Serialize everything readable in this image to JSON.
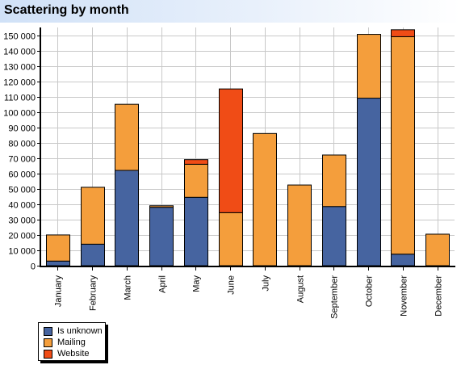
{
  "title": "Scattering by month",
  "chart_data": {
    "type": "bar",
    "stacked": true,
    "categories": [
      "January",
      "February",
      "March",
      "April",
      "May",
      "June",
      "July",
      "August",
      "September",
      "October",
      "November",
      "December"
    ],
    "series": [
      {
        "name": "Is unknown",
        "color": "#4664a0",
        "values": [
          3000,
          14000,
          62000,
          38000,
          44500,
          0,
          0,
          0,
          38500,
          109000,
          7500,
          0
        ]
      },
      {
        "name": "Mailing",
        "color": "#f49e3c",
        "values": [
          17000,
          37000,
          43000,
          1000,
          21500,
          34500,
          86000,
          52500,
          33500,
          41500,
          141500,
          20500
        ]
      },
      {
        "name": "Website",
        "color": "#f04c16",
        "values": [
          0,
          0,
          0,
          0,
          3000,
          80500,
          0,
          0,
          0,
          0,
          4500,
          0
        ]
      }
    ],
    "ylim": [
      0,
      155000
    ],
    "yticks": [
      0,
      10000,
      20000,
      30000,
      40000,
      50000,
      60000,
      70000,
      80000,
      90000,
      100000,
      110000,
      120000,
      130000,
      140000,
      150000
    ],
    "ytick_labels": [
      "0",
      "10 000",
      "20 000",
      "30 000",
      "40 000",
      "50 000",
      "60 000",
      "70 000",
      "80 000",
      "90 000",
      "100 000",
      "110 000",
      "120 000",
      "130 000",
      "140 000",
      "150 000"
    ],
    "grid": true,
    "legend_position": "bottom-left"
  }
}
